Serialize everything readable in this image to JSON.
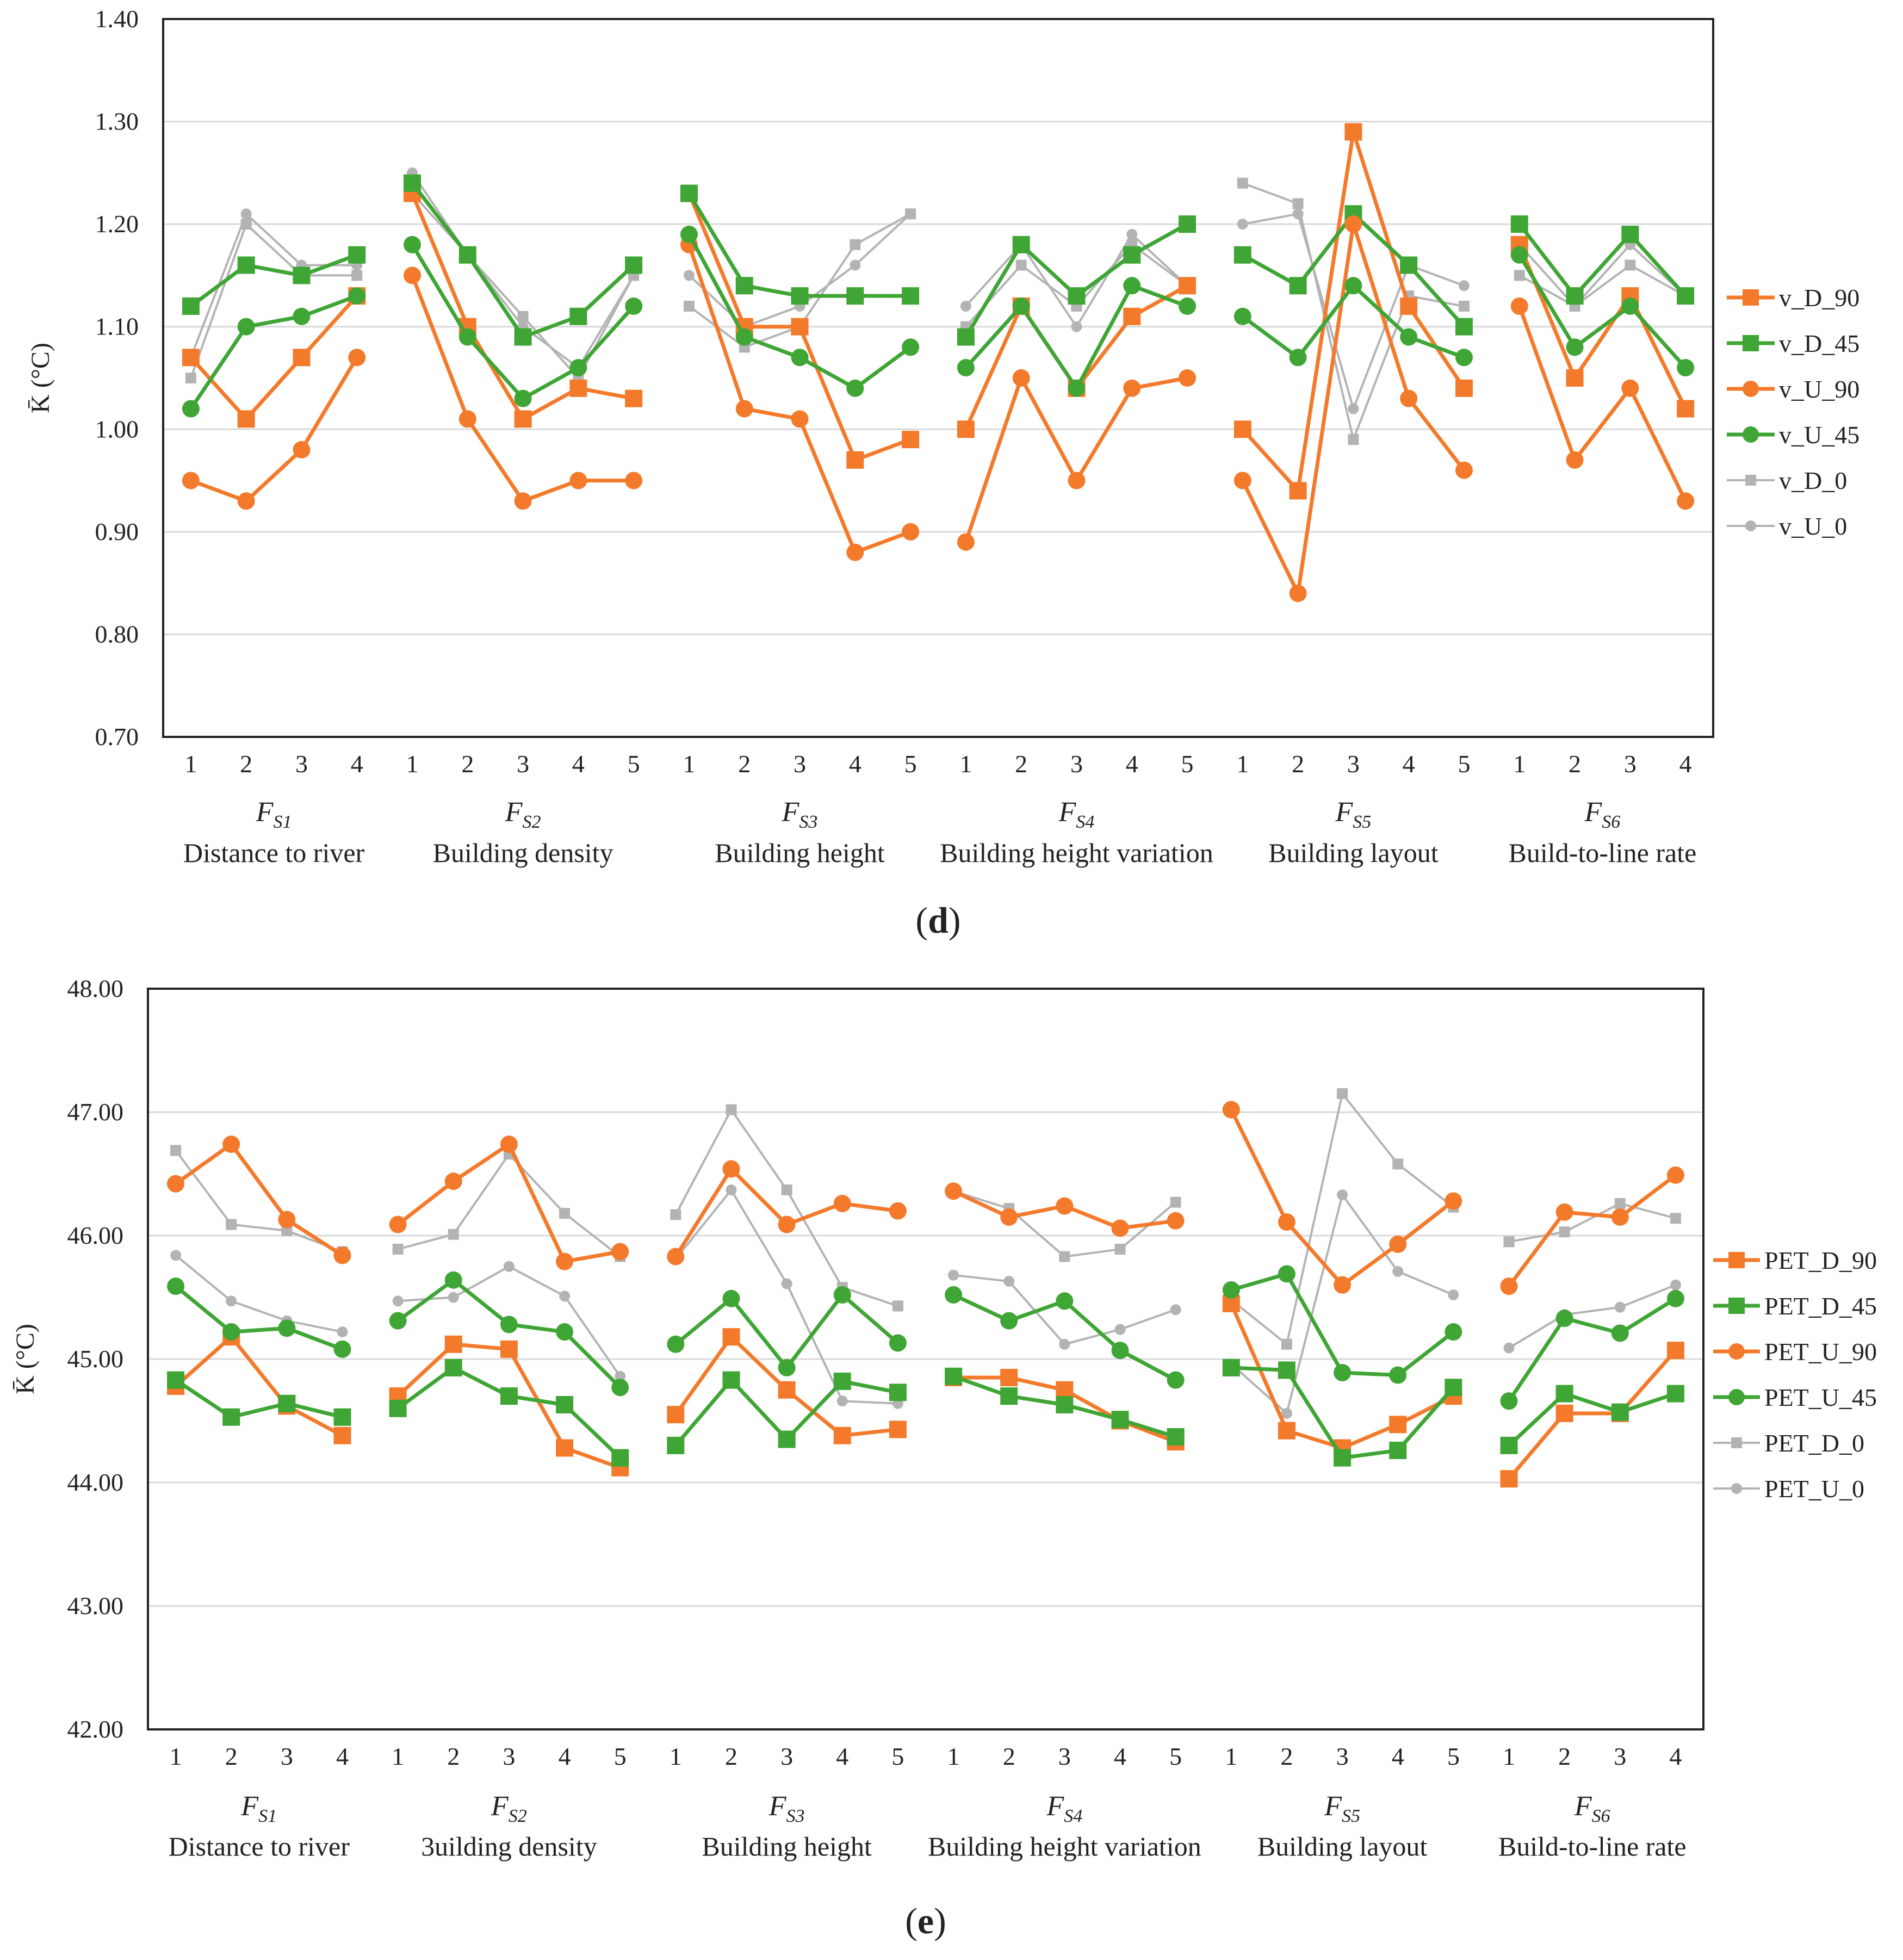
{
  "chart_data": [
    {
      "type": "line",
      "panel_label": "d",
      "ylabel": "K̄ (°C)",
      "ylim": [
        0.7,
        1.4
      ],
      "yticks": [
        "0.70",
        "0.80",
        "0.90",
        "1.00",
        "1.10",
        "1.20",
        "1.30",
        "1.40"
      ],
      "grid": true,
      "legend_position": "right",
      "groups": [
        {
          "factor": "F",
          "sub": "S1",
          "name": "Distance to river",
          "levels": [
            "1",
            "2",
            "3",
            "4"
          ]
        },
        {
          "factor": "F",
          "sub": "S2",
          "name": "Building density",
          "levels": [
            "1",
            "2",
            "3",
            "4",
            "5"
          ]
        },
        {
          "factor": "F",
          "sub": "S3",
          "name": "Building height",
          "levels": [
            "1",
            "2",
            "3",
            "4",
            "5"
          ]
        },
        {
          "factor": "F",
          "sub": "S4",
          "name": "Building height variation",
          "levels": [
            "1",
            "2",
            "3",
            "4",
            "5"
          ]
        },
        {
          "factor": "F",
          "sub": "S5",
          "name": "Building layout",
          "levels": [
            "1",
            "2",
            "3",
            "4",
            "5"
          ]
        },
        {
          "factor": "F",
          "sub": "S6",
          "name": "Build-to-line rate",
          "levels": [
            "1",
            "2",
            "3",
            "4"
          ]
        }
      ],
      "series": [
        {
          "name": "v_D_90",
          "color": "#f47a2b",
          "marker": "square",
          "big": true,
          "values": [
            [
              1.07,
              1.01,
              1.07,
              1.13
            ],
            [
              1.23,
              1.1,
              1.01,
              1.04,
              1.03
            ],
            [
              1.23,
              1.1,
              1.1,
              0.97,
              0.99
            ],
            [
              1.0,
              1.12,
              1.04,
              1.11,
              1.14
            ],
            [
              1.0,
              0.94,
              1.29,
              1.12,
              1.04
            ],
            [
              1.18,
              1.05,
              1.13,
              1.02
            ]
          ]
        },
        {
          "name": "v_D_45",
          "color": "#3fa535",
          "marker": "square",
          "big": true,
          "values": [
            [
              1.12,
              1.16,
              1.15,
              1.17
            ],
            [
              1.24,
              1.17,
              1.09,
              1.11,
              1.16
            ],
            [
              1.23,
              1.14,
              1.13,
              1.13,
              1.13
            ],
            [
              1.09,
              1.18,
              1.13,
              1.17,
              1.2
            ],
            [
              1.17,
              1.14,
              1.21,
              1.16,
              1.1
            ],
            [
              1.2,
              1.13,
              1.19,
              1.13
            ]
          ]
        },
        {
          "name": "v_U_90",
          "color": "#f47a2b",
          "marker": "circle",
          "big": true,
          "values": [
            [
              0.95,
              0.93,
              0.98,
              1.07
            ],
            [
              1.15,
              1.01,
              0.93,
              0.95,
              0.95
            ],
            [
              1.18,
              1.02,
              1.01,
              0.88,
              0.9
            ],
            [
              0.89,
              1.05,
              0.95,
              1.04,
              1.05
            ],
            [
              0.95,
              0.84,
              1.2,
              1.03,
              0.96
            ],
            [
              1.12,
              0.97,
              1.04,
              0.93
            ]
          ]
        },
        {
          "name": "v_U_45",
          "color": "#3fa535",
          "marker": "circle",
          "big": true,
          "values": [
            [
              1.02,
              1.1,
              1.11,
              1.13
            ],
            [
              1.18,
              1.09,
              1.03,
              1.06,
              1.12
            ],
            [
              1.19,
              1.09,
              1.07,
              1.04,
              1.08
            ],
            [
              1.06,
              1.12,
              1.04,
              1.14,
              1.12
            ],
            [
              1.11,
              1.07,
              1.14,
              1.09,
              1.07
            ],
            [
              1.17,
              1.08,
              1.12,
              1.06
            ]
          ]
        },
        {
          "name": "v_D_0",
          "color": "#b3b3b3",
          "marker": "square",
          "big": false,
          "values": [
            [
              1.05,
              1.2,
              1.15,
              1.15
            ],
            [
              1.23,
              1.17,
              1.11,
              1.05,
              1.15
            ],
            [
              1.12,
              1.08,
              1.1,
              1.18,
              1.21
            ],
            [
              1.1,
              1.16,
              1.12,
              1.18,
              1.14
            ],
            [
              1.24,
              1.22,
              0.99,
              1.13,
              1.12
            ],
            [
              1.15,
              1.12,
              1.16,
              1.13
            ]
          ]
        },
        {
          "name": "v_U_0",
          "color": "#b3b3b3",
          "marker": "circle",
          "big": false,
          "values": [
            [
              1.07,
              1.21,
              1.16,
              1.16
            ],
            [
              1.25,
              1.17,
              1.1,
              1.06,
              1.15
            ],
            [
              1.15,
              1.1,
              1.12,
              1.16,
              1.21
            ],
            [
              1.12,
              1.18,
              1.1,
              1.19,
              1.14
            ],
            [
              1.2,
              1.21,
              1.02,
              1.16,
              1.14
            ],
            [
              1.18,
              1.12,
              1.18,
              1.13
            ]
          ]
        }
      ]
    },
    {
      "type": "line",
      "panel_label": "e",
      "ylabel": "K̄ (°C)",
      "ylim": [
        42.0,
        48.0
      ],
      "yticks": [
        "42.00",
        "43.00",
        "44.00",
        "45.00",
        "46.00",
        "47.00",
        "48.00"
      ],
      "grid": true,
      "legend_position": "right",
      "groups": [
        {
          "factor": "F",
          "sub": "S1",
          "name": "Distance to river",
          "levels": [
            "1",
            "2",
            "3",
            "4"
          ]
        },
        {
          "factor": "F",
          "sub": "S2",
          "name": "3uilding density",
          "levels": [
            "1",
            "2",
            "3",
            "4",
            "5"
          ]
        },
        {
          "factor": "F",
          "sub": "S3",
          "name": "Building height",
          "levels": [
            "1",
            "2",
            "3",
            "4",
            "5"
          ]
        },
        {
          "factor": "F",
          "sub": "S4",
          "name": "Building height variation",
          "levels": [
            "1",
            "2",
            "3",
            "4",
            "5"
          ]
        },
        {
          "factor": "F",
          "sub": "S5",
          "name": "Building layout",
          "levels": [
            "1",
            "2",
            "3",
            "4",
            "5"
          ]
        },
        {
          "factor": "F",
          "sub": "S6",
          "name": "Build-to-line rate",
          "levels": [
            "1",
            "2",
            "3",
            "4"
          ]
        }
      ],
      "series": [
        {
          "name": "PET_D_90",
          "color": "#f47a2b",
          "marker": "square",
          "big": true,
          "values": [
            [
              44.78,
              45.18,
              44.62,
              44.38
            ],
            [
              44.7,
              45.12,
              45.08,
              44.28,
              44.12
            ],
            [
              44.55,
              45.18,
              44.75,
              44.38,
              44.43
            ],
            [
              44.85,
              44.85,
              44.75,
              44.5,
              44.33
            ],
            [
              45.45,
              44.42,
              44.28,
              44.47,
              44.7
            ],
            [
              44.03,
              44.56,
              44.56,
              45.07
            ]
          ]
        },
        {
          "name": "PET_D_45",
          "color": "#3fa535",
          "marker": "square",
          "big": true,
          "values": [
            [
              44.83,
              44.53,
              44.64,
              44.53
            ],
            [
              44.6,
              44.93,
              44.7,
              44.63,
              44.2
            ],
            [
              44.3,
              44.83,
              44.35,
              44.82,
              44.73
            ],
            [
              44.86,
              44.7,
              44.63,
              44.51,
              44.37
            ],
            [
              44.93,
              44.91,
              44.2,
              44.26,
              44.77
            ],
            [
              44.3,
              44.72,
              44.57,
              44.72
            ]
          ]
        },
        {
          "name": "PET_U_90",
          "color": "#f47a2b",
          "marker": "circle",
          "big": true,
          "values": [
            [
              46.42,
              46.74,
              46.13,
              45.84
            ],
            [
              46.09,
              46.44,
              46.74,
              45.79,
              45.87
            ],
            [
              45.83,
              46.54,
              46.09,
              46.26,
              46.2
            ],
            [
              46.36,
              46.15,
              46.24,
              46.06,
              46.12
            ],
            [
              47.02,
              46.11,
              45.6,
              45.93,
              46.28
            ],
            [
              45.59,
              46.19,
              46.15,
              46.49
            ]
          ]
        },
        {
          "name": "PET_U_45",
          "color": "#3fa535",
          "marker": "circle",
          "big": true,
          "values": [
            [
              45.59,
              45.22,
              45.25,
              45.08
            ],
            [
              45.31,
              45.64,
              45.28,
              45.22,
              44.77
            ],
            [
              45.12,
              45.49,
              44.93,
              45.52,
              45.13
            ],
            [
              45.52,
              45.31,
              45.47,
              45.07,
              44.83
            ],
            [
              45.56,
              45.69,
              44.89,
              44.87,
              45.22
            ],
            [
              44.66,
              45.33,
              45.21,
              45.49
            ]
          ]
        },
        {
          "name": "PET_D_0",
          "color": "#b3b3b3",
          "marker": "square",
          "big": false,
          "values": [
            [
              46.69,
              46.09,
              46.04,
              45.87
            ],
            [
              45.89,
              46.01,
              46.66,
              46.18,
              45.83
            ],
            [
              46.17,
              47.02,
              46.37,
              45.58,
              45.43
            ],
            [
              46.36,
              46.22,
              45.83,
              45.89,
              46.27
            ],
            [
              45.48,
              45.12,
              47.15,
              46.58,
              46.23
            ],
            [
              45.95,
              46.03,
              46.26,
              46.14
            ]
          ]
        },
        {
          "name": "PET_U_0",
          "color": "#b3b3b3",
          "marker": "circle",
          "big": false,
          "values": [
            [
              45.84,
              45.47,
              45.31,
              45.22
            ],
            [
              45.47,
              45.5,
              45.75,
              45.51,
              44.86
            ],
            [
              45.81,
              46.37,
              45.61,
              44.66,
              44.64
            ],
            [
              45.68,
              45.63,
              45.12,
              45.24,
              45.4
            ],
            [
              44.96,
              44.56,
              46.33,
              45.71,
              45.52
            ],
            [
              45.09,
              45.36,
              45.42,
              45.6
            ]
          ]
        }
      ]
    }
  ]
}
